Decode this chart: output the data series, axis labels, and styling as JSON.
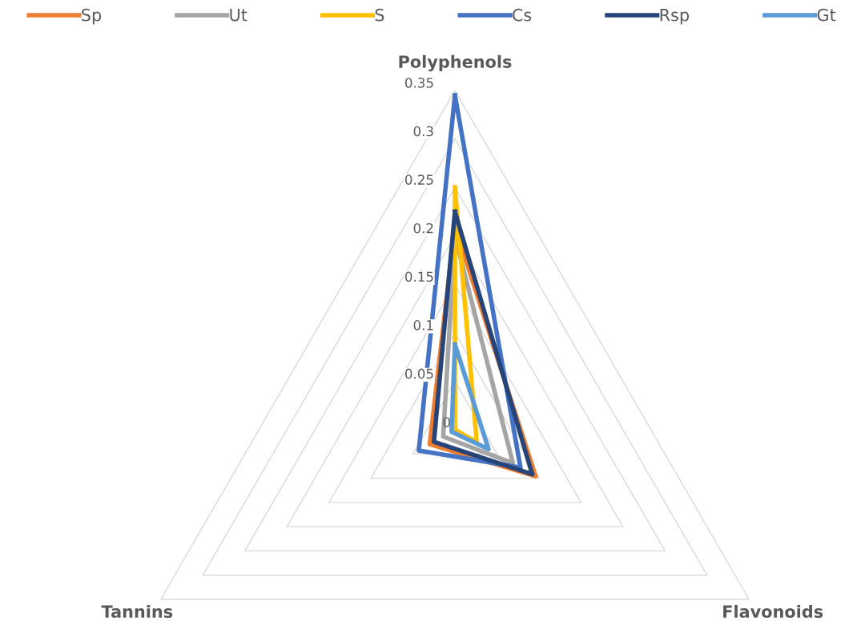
{
  "chart_data": {
    "type": "radar",
    "categories": [
      "Polyphenols",
      "Flavonoids",
      "Tannins"
    ],
    "series": [
      {
        "name": "Sp",
        "color": "#ed7d31",
        "values": [
          0.21,
          0.096,
          0.03
        ]
      },
      {
        "name": "Ut",
        "color": "#a5a5a5",
        "values": [
          0.2,
          0.069,
          0.014
        ]
      },
      {
        "name": "S",
        "color": "#ffc000",
        "values": [
          0.25,
          0.026,
          0.0
        ]
      },
      {
        "name": "Cs",
        "color": "#4472c4",
        "values": [
          0.345,
          0.078,
          0.043
        ]
      },
      {
        "name": "Rsp",
        "color": "#264478",
        "values": [
          0.225,
          0.092,
          0.025
        ]
      },
      {
        "name": "Gt",
        "color": "#5b9bd5",
        "values": [
          0.088,
          0.04,
          0.004
        ]
      }
    ],
    "ylim": [
      0,
      0.35
    ],
    "yticks": [
      0,
      0.05,
      0.1,
      0.15,
      0.2,
      0.25,
      0.3,
      0.35
    ],
    "grid": true,
    "legend": "top"
  }
}
